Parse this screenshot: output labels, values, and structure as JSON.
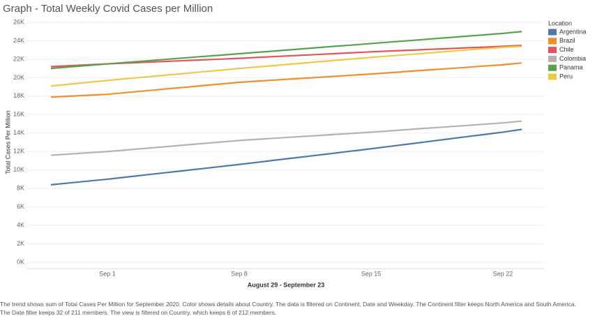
{
  "chart_data": {
    "type": "line",
    "title": "Graph - Total Weekly Covid Cases per Million",
    "x_label": "August 29 - September 23",
    "y_label": "Total Cases Per Million",
    "legend_title": "Location",
    "legend_position": "right",
    "grid": true,
    "categories": [
      null,
      null,
      null,
      "Sep 1",
      null,
      null,
      null,
      null,
      null,
      null,
      "Sep 8",
      null,
      null,
      null,
      null,
      null,
      null,
      "Sep 15",
      null,
      null,
      null,
      null,
      null,
      null,
      "Sep 22",
      null
    ],
    "ylim": [
      0,
      26000
    ],
    "yticks": [
      {
        "value": 0,
        "label": "0K"
      },
      {
        "value": 2000,
        "label": "2K"
      },
      {
        "value": 4000,
        "label": "4K"
      },
      {
        "value": 6000,
        "label": "6K"
      },
      {
        "value": 8000,
        "label": "8K"
      },
      {
        "value": 10000,
        "label": "10K"
      },
      {
        "value": 12000,
        "label": "12K"
      },
      {
        "value": 14000,
        "label": "14K"
      },
      {
        "value": 16000,
        "label": "16K"
      },
      {
        "value": 18000,
        "label": "18K"
      },
      {
        "value": 20000,
        "label": "20K"
      },
      {
        "value": 22000,
        "label": "22K"
      },
      {
        "value": 24000,
        "label": "24K"
      },
      {
        "value": 26000,
        "label": "26K"
      }
    ],
    "series": [
      {
        "name": "Argentina",
        "color": "#4e79a7",
        "values": [
          8400,
          8600,
          8800,
          9000,
          9230,
          9460,
          9690,
          9910,
          10140,
          10370,
          10600,
          10840,
          11090,
          11330,
          11570,
          11810,
          12060,
          12300,
          12560,
          12810,
          13070,
          13330,
          13590,
          13840,
          14100,
          14400
        ]
      },
      {
        "name": "Brazil",
        "color": "#f28e2b",
        "values": [
          17900,
          18000,
          18100,
          18200,
          18390,
          18570,
          18760,
          18940,
          19130,
          19310,
          19500,
          19630,
          19760,
          19890,
          20010,
          20140,
          20270,
          20400,
          20540,
          20690,
          20830,
          20970,
          21110,
          21260,
          21400,
          21600
        ]
      },
      {
        "name": "Chile",
        "color": "#e15759",
        "values": [
          21200,
          21300,
          21400,
          21500,
          21590,
          21670,
          21760,
          21840,
          21930,
          22010,
          22100,
          22200,
          22300,
          22400,
          22500,
          22600,
          22700,
          22800,
          22890,
          22970,
          23060,
          23140,
          23230,
          23310,
          23400,
          23500
        ]
      },
      {
        "name": "Colombia",
        "color": "#bab0ac",
        "values": [
          11600,
          11730,
          11870,
          12000,
          12170,
          12340,
          12510,
          12690,
          12860,
          13030,
          13200,
          13330,
          13460,
          13590,
          13710,
          13840,
          13970,
          14100,
          14240,
          14390,
          14530,
          14670,
          14810,
          14960,
          15100,
          15300
        ]
      },
      {
        "name": "Panama",
        "color": "#59a14f",
        "values": [
          21000,
          21170,
          21330,
          21500,
          21660,
          21810,
          21970,
          22130,
          22290,
          22440,
          22600,
          22760,
          22910,
          23070,
          23230,
          23390,
          23540,
          23700,
          23860,
          24010,
          24170,
          24330,
          24490,
          24640,
          24800,
          25000
        ]
      },
      {
        "name": "Peru",
        "color": "#edc948",
        "values": [
          19100,
          19300,
          19500,
          19700,
          19890,
          20070,
          20260,
          20440,
          20630,
          20810,
          21000,
          21170,
          21340,
          21510,
          21690,
          21860,
          22030,
          22200,
          22360,
          22510,
          22670,
          22830,
          22990,
          23140,
          23300,
          23400
        ]
      }
    ],
    "caption": [
      "The trend shows sum of Total Cases Per Million for September 2020.  Color shows details about Country. The data is filtered on Continent, Date and Weekday. The Continent filter keeps North America and South America.",
      "The Date filter keeps 32 of 211 members. The view is filtered on Country, which keeps 6 of 212 members."
    ]
  }
}
